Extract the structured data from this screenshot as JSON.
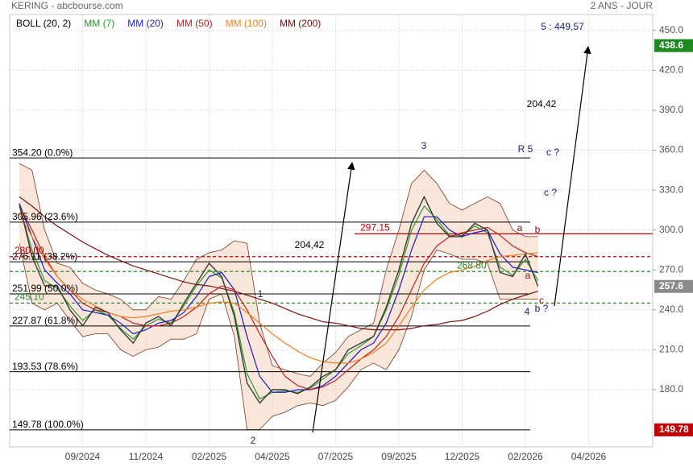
{
  "chart_data": {
    "type": "line",
    "title": "KERING - abcbourse.com",
    "subtitle": "2 ANS - JOUR",
    "categories": [
      null,
      null,
      null,
      null,
      null,
      "09/2024",
      null,
      null,
      null,
      null,
      "11/2024",
      null,
      null,
      null,
      null,
      "02/2025",
      null,
      null,
      null,
      null,
      "04/2025",
      null,
      null,
      null,
      null,
      "07/2025",
      null,
      null,
      null,
      null,
      "09/2025",
      null,
      null,
      null,
      null,
      "12/2025",
      null,
      null,
      null,
      null,
      "02/2026",
      null,
      null,
      null,
      null,
      "04/2026"
    ],
    "values": [
      320,
      280,
      258,
      258,
      240,
      228,
      242,
      238,
      225,
      215,
      230,
      235,
      228,
      245,
      260,
      275,
      265,
      235,
      185,
      170,
      180,
      180,
      177,
      182,
      190,
      195,
      210,
      215,
      220,
      242,
      270,
      305,
      325,
      305,
      295,
      295,
      305,
      300,
      268,
      265,
      282,
      257.6,
      null,
      null,
      null,
      null
    ],
    "color": "#3a3a3a",
    "bollinger": {
      "name": "BOLL (20, 2)",
      "color": "#f3c9b0",
      "upper": [
        350,
        345,
        300,
        275,
        272,
        260,
        255,
        252,
        248,
        240,
        240,
        250,
        248,
        262,
        278,
        283,
        285,
        292,
        290,
        230,
        198,
        195,
        192,
        190,
        200,
        208,
        220,
        225,
        230,
        270,
        300,
        335,
        345,
        335,
        320,
        315,
        320,
        325,
        320,
        300,
        295,
        295,
        null,
        null,
        null,
        null
      ],
      "lower": [
        290,
        245,
        240,
        245,
        232,
        220,
        222,
        222,
        210,
        205,
        210,
        212,
        218,
        218,
        222,
        248,
        252,
        220,
        150,
        150,
        160,
        163,
        168,
        170,
        168,
        172,
        182,
        195,
        200,
        195,
        210,
        235,
        270,
        285,
        282,
        278,
        278,
        275,
        248,
        248,
        248,
        248,
        null,
        null,
        null,
        null
      ]
    },
    "series": [
      {
        "name": "MM (7)",
        "color": "#2a9a2a",
        "values": [
          318,
          285,
          262,
          256,
          243,
          232,
          240,
          236,
          226,
          218,
          228,
          233,
          230,
          243,
          258,
          270,
          264,
          238,
          192,
          173,
          178,
          179,
          178,
          181,
          188,
          195,
          207,
          213,
          220,
          240,
          266,
          300,
          318,
          308,
          296,
          296,
          303,
          298,
          272,
          266,
          278,
          262,
          null,
          null,
          null,
          null
        ]
      },
      {
        "name": "MM (20)",
        "color": "#1a1acc",
        "values": [
          320,
          295,
          270,
          260,
          252,
          240,
          238,
          236,
          230,
          222,
          225,
          230,
          232,
          238,
          250,
          265,
          268,
          255,
          220,
          190,
          178,
          178,
          180,
          180,
          183,
          190,
          200,
          210,
          215,
          230,
          255,
          285,
          310,
          310,
          300,
          295,
          298,
          300,
          282,
          272,
          270,
          268,
          null,
          null,
          null,
          null
        ]
      },
      {
        "name": "MM (50)",
        "color": "#c02020",
        "values": [
          318,
          300,
          280,
          265,
          255,
          245,
          240,
          238,
          235,
          230,
          228,
          228,
          230,
          235,
          242,
          252,
          258,
          255,
          240,
          222,
          205,
          190,
          183,
          180,
          182,
          187,
          195,
          203,
          210,
          220,
          235,
          255,
          275,
          288,
          295,
          298,
          300,
          302,
          296,
          288,
          283,
          280,
          null,
          null,
          null,
          null
        ]
      },
      {
        "name": "MM (100)",
        "color": "#f08020",
        "values": [
          312,
          295,
          278,
          265,
          255,
          248,
          243,
          238,
          235,
          234,
          235,
          237,
          239,
          240,
          242,
          245,
          246,
          245,
          238,
          230,
          222,
          215,
          209,
          204,
          201,
          200,
          200,
          203,
          208,
          215,
          228,
          242,
          255,
          263,
          268,
          270,
          273,
          277,
          280,
          281,
          282,
          283,
          null,
          null,
          null,
          null
        ]
      },
      {
        "name": "MM (200)",
        "color": "#7a1010",
        "values": [
          325,
          318,
          310,
          303,
          297,
          291,
          286,
          281,
          277,
          273,
          270,
          267,
          264,
          261,
          259,
          258,
          256,
          254,
          251,
          248,
          245,
          241,
          237,
          234,
          231,
          230,
          228,
          226,
          225,
          225,
          225,
          226,
          228,
          229,
          231,
          232,
          235,
          239,
          244,
          248,
          251,
          254,
          null,
          null,
          null,
          null
        ]
      }
    ],
    "ylim": [
      137,
      462
    ],
    "yticks": [
      {
        "value": 180,
        "label": "180.0"
      },
      {
        "value": 210,
        "label": "210.0"
      },
      {
        "value": 240,
        "label": "240.0"
      },
      {
        "value": 270,
        "label": "270.0"
      },
      {
        "value": 300,
        "label": "300.0"
      },
      {
        "value": 330,
        "label": "330.0"
      },
      {
        "value": 360,
        "label": "360.0"
      },
      {
        "value": 390,
        "label": "390.0"
      },
      {
        "value": 420,
        "label": "420.0"
      },
      {
        "value": 450,
        "label": "450.0"
      }
    ],
    "grid": true,
    "fibonacci": [
      {
        "value": 354.2,
        "label": "354.20  (0.0%)"
      },
      {
        "value": 305.96,
        "label": "305.96  (23.6%)"
      },
      {
        "value": 276.11,
        "label": "276.11  (38.2%)"
      },
      {
        "value": 251.99,
        "label": "251.99  (50.0%)"
      },
      {
        "value": 227.87,
        "label": "227.87  (61.8%)"
      },
      {
        "value": 193.53,
        "label": "193.53  (78.6%)"
      },
      {
        "value": 149.78,
        "label": "149.78  (100.0%)"
      }
    ],
    "levels": [
      {
        "value": 297.15,
        "label": "297.15",
        "color": "#c00000",
        "style": "solid"
      },
      {
        "value": 280,
        "label": "280.00",
        "color": "#c00000",
        "style": "dashed"
      },
      {
        "value": 268.8,
        "label": "268.80",
        "color": "#2a8a2a",
        "style": "dashed"
      },
      {
        "value": 245.1,
        "label": "245.10",
        "color": "#2a8a2a",
        "style": "dashed"
      }
    ],
    "badges": [
      {
        "value": 438.6,
        "color": "#1f8a1f"
      },
      {
        "value": 257.6,
        "color": "#8a8a8a"
      },
      {
        "value": 149.78,
        "color": "#c00000"
      }
    ],
    "annotations": [
      {
        "text": "5 : 449,57",
        "color": "#1a1a80"
      },
      {
        "text": "204,42",
        "color": "#000000"
      },
      {
        "text": "R 5",
        "color": "#1a1a80"
      },
      {
        "text": "c ?",
        "color": "#1a1a80"
      },
      {
        "text": "c ?",
        "color": "#1a1a80"
      },
      {
        "text": "3",
        "color": "#1a1a80"
      },
      {
        "text": "1",
        "color": "#1a1a80"
      },
      {
        "text": "2",
        "color": "#1a1a80"
      },
      {
        "text": "4",
        "color": "#1a1a80"
      },
      {
        "text": "204,42",
        "color": "#000000"
      },
      {
        "text": "a",
        "color": "#8a1010"
      },
      {
        "text": "b",
        "color": "#8a1010"
      },
      {
        "text": "a",
        "color": "#8a1010"
      },
      {
        "text": "c",
        "color": "#8a1010"
      },
      {
        "text": "b ?",
        "color": "#1a1a80"
      }
    ]
  }
}
